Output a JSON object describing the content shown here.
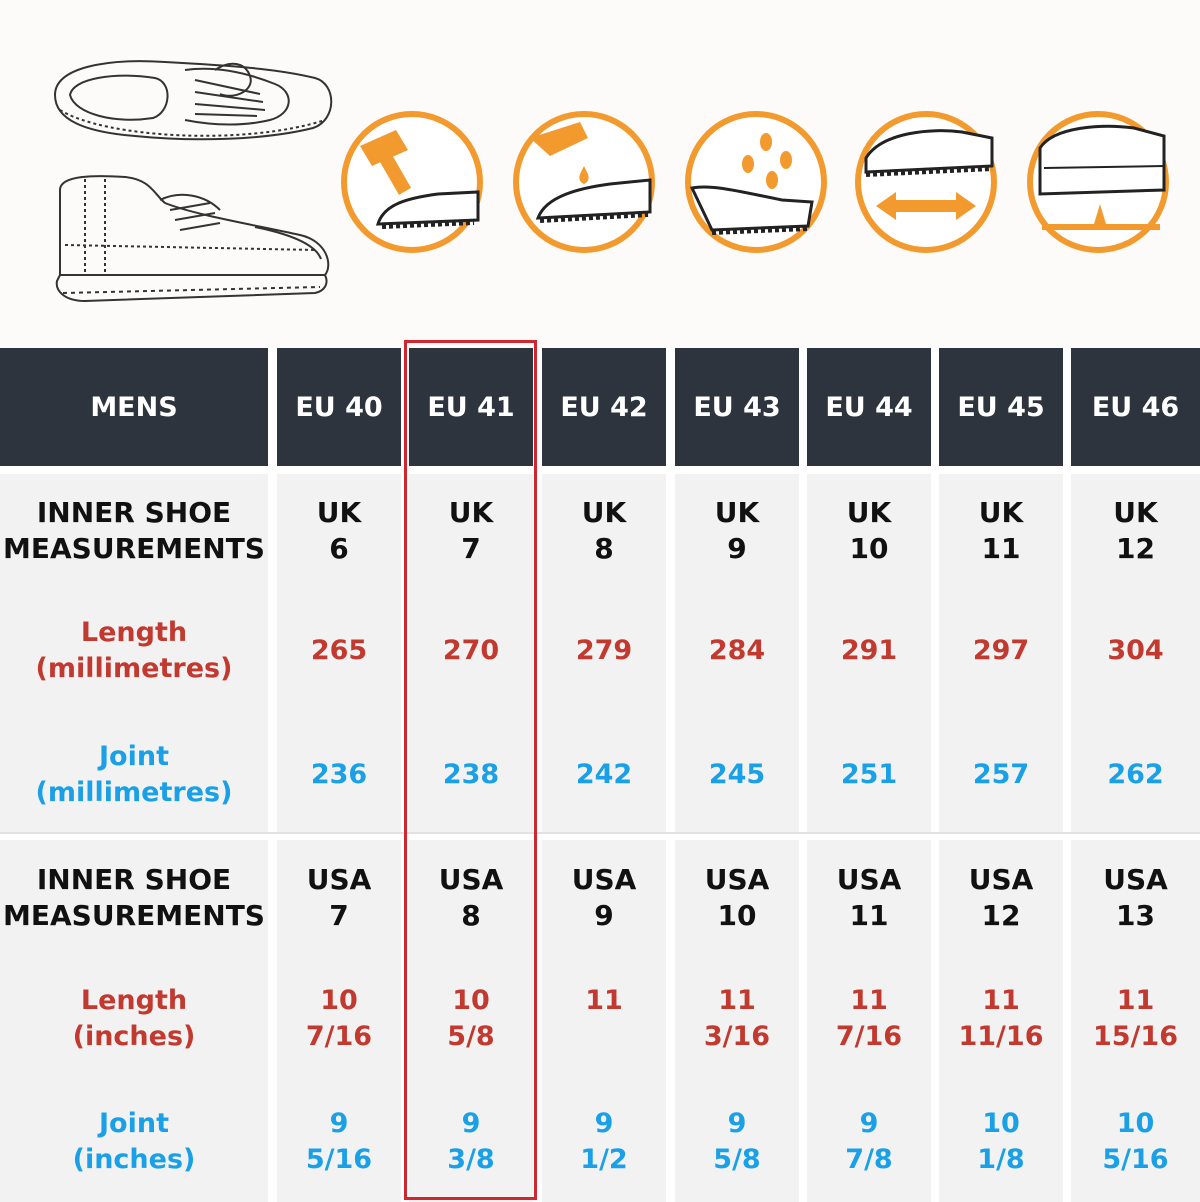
{
  "colors": {
    "header_bg": "#2e343d",
    "header_text": "#ffffff",
    "row_bg": "#f3f2f2",
    "length_text": "#c1392f",
    "joint_text": "#1aa0e6",
    "highlight_border": "#d0262f",
    "icon_orange": "#f39a2e"
  },
  "illustrations": {
    "shoes": [
      "shoe-top-view",
      "shoe-side-view"
    ],
    "badges": [
      "impact-protection-icon",
      "oil-resistant-icon",
      "water-resistant-icon",
      "slip-resistant-icon",
      "puncture-resistant-icon"
    ]
  },
  "table": {
    "header_label": "MENS",
    "sizes": [
      "EU 40",
      "EU 41",
      "EU 42",
      "EU 43",
      "EU 44",
      "EU 45",
      "EU 46"
    ],
    "highlighted_column": "EU 41",
    "uk_section": {
      "label": [
        "INNER SHOE",
        "MEASUREMENTS"
      ],
      "sizes": [
        [
          "UK",
          "6"
        ],
        [
          "UK",
          "7"
        ],
        [
          "UK",
          "8"
        ],
        [
          "UK",
          "9"
        ],
        [
          "UK",
          "10"
        ],
        [
          "UK",
          "11"
        ],
        [
          "UK",
          "12"
        ]
      ],
      "length_label": [
        "Length",
        "(millimetres)"
      ],
      "length_values": [
        "265",
        "270",
        "279",
        "284",
        "291",
        "297",
        "304"
      ],
      "joint_label": [
        "Joint",
        "(millimetres)"
      ],
      "joint_values": [
        "236",
        "238",
        "242",
        "245",
        "251",
        "257",
        "262"
      ]
    },
    "usa_section": {
      "label": [
        "INNER SHOE",
        "MEASUREMENTS"
      ],
      "sizes": [
        [
          "USA",
          "7"
        ],
        [
          "USA",
          "8"
        ],
        [
          "USA",
          "9"
        ],
        [
          "USA",
          "10"
        ],
        [
          "USA",
          "11"
        ],
        [
          "USA",
          "12"
        ],
        [
          "USA",
          "13"
        ]
      ],
      "length_label": [
        "Length",
        "(inches)"
      ],
      "length_values": [
        [
          "10",
          "7/16"
        ],
        [
          "10",
          "5/8"
        ],
        [
          "11",
          ""
        ],
        [
          "11",
          "3/16"
        ],
        [
          "11",
          "7/16"
        ],
        [
          "11",
          "11/16"
        ],
        [
          "11",
          "15/16"
        ]
      ],
      "joint_label": [
        "Joint",
        "(inches)"
      ],
      "joint_values": [
        [
          "9",
          "5/16"
        ],
        [
          "9",
          "3/8"
        ],
        [
          "9",
          "1/2"
        ],
        [
          "9",
          "5/8"
        ],
        [
          "9",
          "7/8"
        ],
        [
          "10",
          "1/8"
        ],
        [
          "10",
          "5/16"
        ]
      ]
    }
  }
}
